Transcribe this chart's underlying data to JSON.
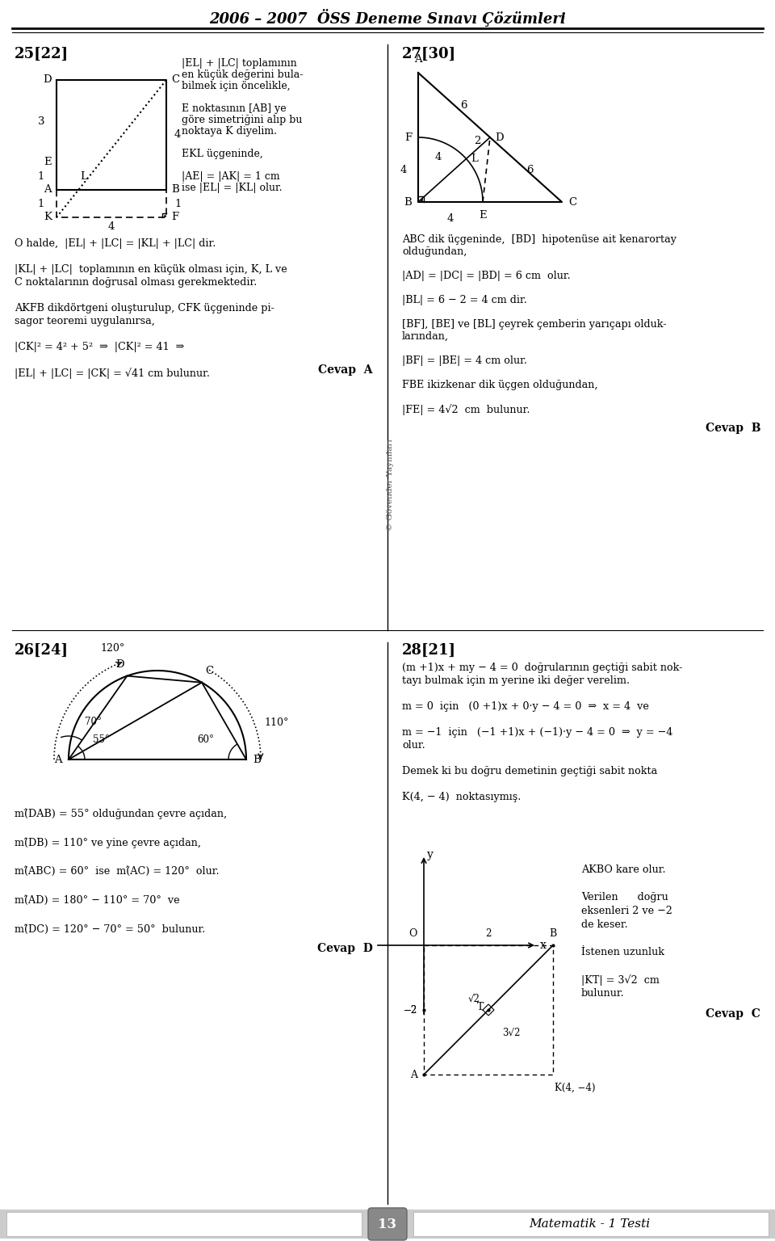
{
  "title": "2006 – 2007  ÖSS Deneme Sınavı Çözümleri",
  "footer_number": "13",
  "footer_text": "Matematik - 1 Testi",
  "bg_color": "#ffffff",
  "p25_label": "25[22]",
  "p27_label": "27[30]",
  "p26_label": "26[24]",
  "p28_label": "28[21]",
  "p25_text": [
    "|EL| + |LC| toplamının",
    "en küçük değerini bula-",
    "bilmek için öncelikle,",
    "",
    "E noktasının [AB] ye",
    "göre simetriğini alıp bu",
    "noktaya K diyelim.",
    "",
    "EKL üçgeninde,",
    "",
    "|AE| = |AK| = 1 cm",
    "ise |EL| = |KL| olur."
  ],
  "p25_below": [
    "O halde,  |EL| + |LC| = |KL| + |LC| dir.",
    "",
    "|KL| + |LC|  toplamının en küçük olması için, K, L ve",
    "C noktalarının doğrusal olması gerekmektedir.",
    "",
    "AKFB dikdörtgeni oluşturulup, CFK üçgeninde pi-",
    "sagor teoremi uygulanırsa,",
    "",
    "|CK|² = 4² + 5²  ⇒  |CK|² = 41  ⇒",
    "",
    "|EL| + |LC| = |CK| = √41 cm bulunur."
  ],
  "p27_text": [
    "ABC dik üçgeninde,  [BD]  hipotenüse ait kenarortay",
    "olduğundan,",
    "",
    "|AD| = |DC| = |BD| = 6 cm  olur.",
    "",
    "|BL| = 6 − 2 = 4 cm dir.",
    "",
    "[BF], [BE] ve [BL] çeyrek çemberin yarıçapı olduk-",
    "larından,",
    "",
    "|BF| = |BE| = 4 cm olur.",
    "",
    "FBE ikizkenar dik üçgen olduğundan,",
    "",
    "|FE| = 4√2  cm  bulunur."
  ],
  "p26_text": [
    "m(̂DAB) = 55° olduğundan çevre açıdan,",
    "",
    "m(̂DB) = 110° ve yine çevre açıdan,",
    "",
    "m(̂ABC) = 60°  ise  m(̂AC) = 120°  olur.",
    "",
    "m(̂AD) = 180° − 110° = 70°  ve",
    "",
    "m(̂DC) = 120° − 70° = 50°  bulunur."
  ],
  "p28_text": [
    "(m +1)x + my − 4 = 0  doğrularının geçtiği sabit nok-",
    "tayı bulmak için m yerine iki değer verelim.",
    "",
    "m = 0  için   (0 +1)x + 0·y − 4 = 0  ⇒  x = 4  ve",
    "",
    "m = −1  için   (−1 +1)x + (−1)·y − 4 = 0  ⇒  y = −4",
    "olur.",
    "",
    "Demek ki bu doğru demetinin geçtiği sabit nokta",
    "",
    "K(4, − 4)  noktasıymış."
  ],
  "p28_right": [
    "AKBO kare olur.",
    "",
    "Verilen      doğru",
    "eksenleri 2 ve −2",
    "de keser.",
    "",
    "İstenen uzunluk",
    "",
    "|KT| = 3√2  cm",
    "bulunur."
  ]
}
